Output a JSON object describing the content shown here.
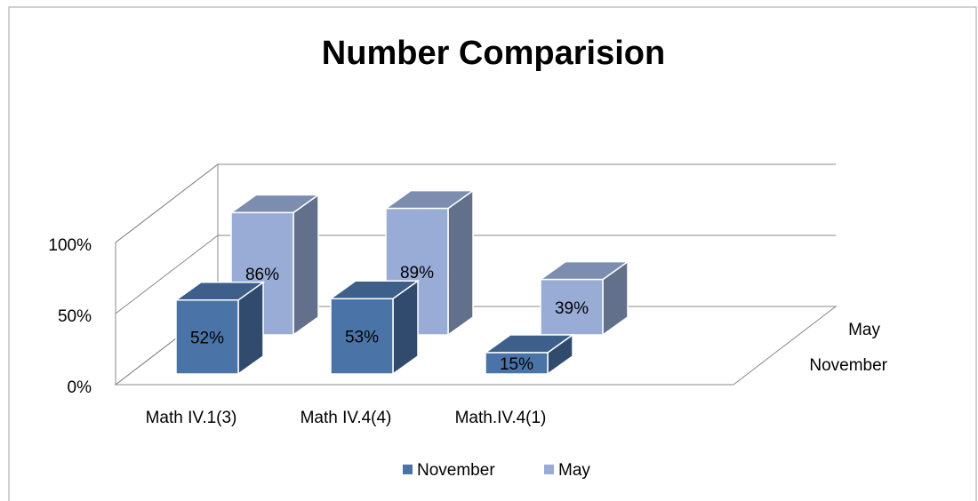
{
  "chart_data": {
    "type": "bar3d",
    "title": "Number Comparision",
    "categories": [
      "Math IV.1(3)",
      "Math IV.4(4)",
      "Math.IV.4(1)"
    ],
    "series": [
      {
        "name": "November",
        "color": "#4a74a8",
        "values": [
          52,
          53,
          15
        ],
        "value_labels": [
          "52%",
          "53%",
          "15%"
        ]
      },
      {
        "name": "May",
        "color": "#98acd6",
        "values": [
          86,
          89,
          39
        ],
        "value_labels": [
          "86%",
          "89%",
          "39%"
        ]
      }
    ],
    "ylim": [
      0,
      100
    ],
    "yticks": [
      {
        "value": 0,
        "label": "0%"
      },
      {
        "value": 50,
        "label": "50%"
      },
      {
        "value": 100,
        "label": "100%"
      }
    ],
    "grid": true,
    "legend": "bottom"
  }
}
